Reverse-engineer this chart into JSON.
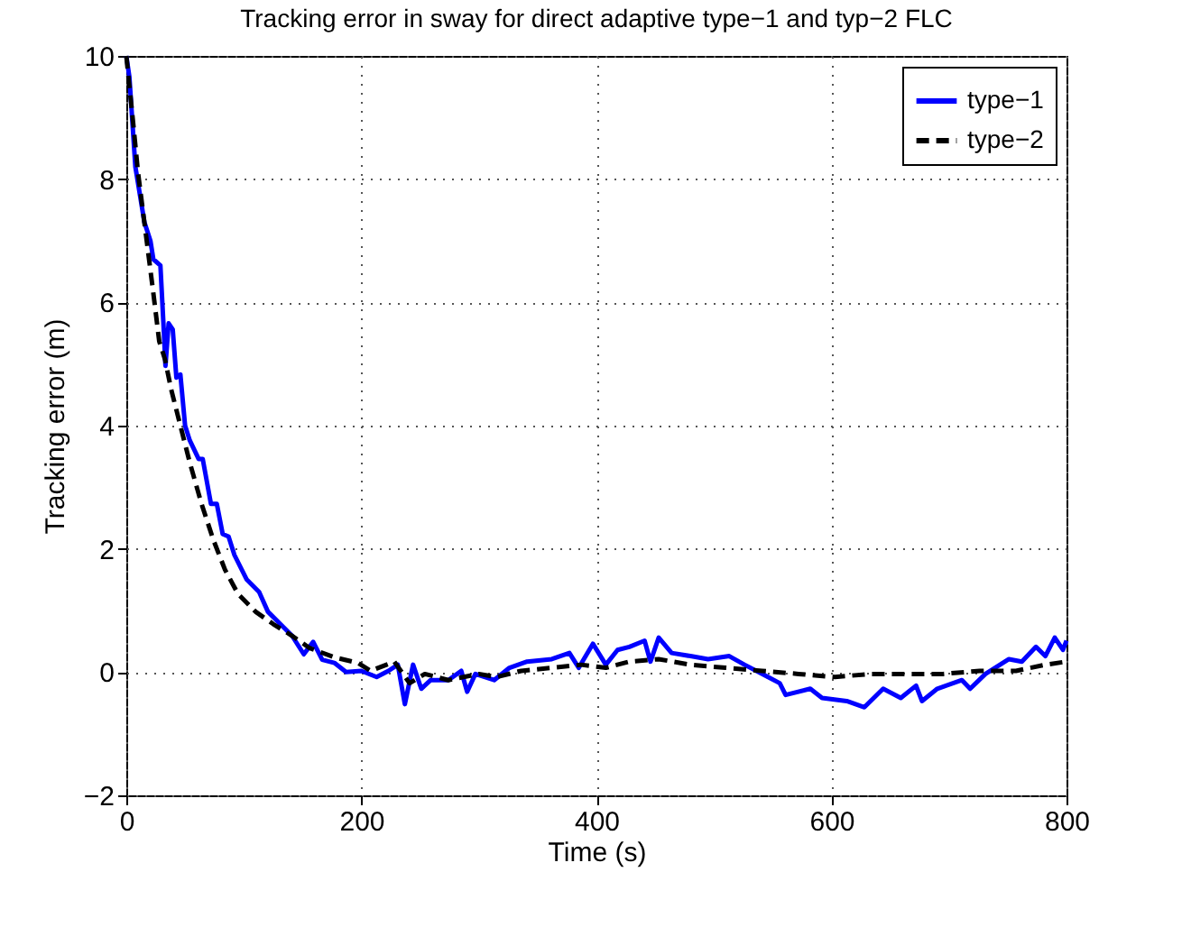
{
  "chart_data": {
    "type": "line",
    "title": "Tracking error in sway for direct adaptive type−1 and typ−2 FLC",
    "xlabel": "Time (s)",
    "ylabel": "Tracking error (m)",
    "xlim": [
      0,
      800
    ],
    "ylim": [
      -2,
      10
    ],
    "xticks": [
      0,
      200,
      400,
      600,
      800
    ],
    "yticks": [
      -2,
      0,
      2,
      4,
      6,
      8,
      10
    ],
    "grid": true,
    "legend": "top right",
    "marker": "none",
    "series": [
      {
        "name": "type−1",
        "color": "#0000ff",
        "line_style": "solid",
        "x": [
          0,
          2.6,
          7.7,
          15.4,
          20.5,
          23,
          29,
          32,
          33.3,
          36,
          39.5,
          42.6,
          46,
          50,
          54,
          61.5,
          65,
          72,
          77,
          82,
          87,
          92,
          102.5,
          113,
          120.5,
          131,
          141,
          151,
          159,
          166.7,
          177,
          187,
          200,
          213,
          223,
          231,
          237,
          244,
          251,
          259,
          274,
          285,
          290,
          297,
          313,
          326,
          341,
          362,
          377,
          385,
          397,
          408,
          418,
          428,
          441,
          446,
          453,
          464,
          480,
          495,
          513,
          526,
          546,
          556,
          561,
          582,
          592,
          613,
          628,
          644,
          659,
          672,
          677,
          690,
          711,
          718,
          731,
          751,
          762,
          774,
          782,
          790,
          797,
          800
        ],
        "values": [
          10,
          9.66,
          8.2,
          7.3,
          7.0,
          6.7,
          6.6,
          5.5,
          4.97,
          5.66,
          5.56,
          4.78,
          4.83,
          4.0,
          3.76,
          3.46,
          3.46,
          2.73,
          2.73,
          2.24,
          2.2,
          1.9,
          1.5,
          1.3,
          0.98,
          0.78,
          0.59,
          0.29,
          0.49,
          0.2,
          0.15,
          0,
          0.02,
          -0.08,
          0.02,
          0.12,
          -0.52,
          0.12,
          -0.27,
          -0.13,
          -0.13,
          0.02,
          -0.32,
          -0.03,
          -0.13,
          0.07,
          0.17,
          0.21,
          0.31,
          0.07,
          0.46,
          0.12,
          0.36,
          0.41,
          0.51,
          0.17,
          0.56,
          0.31,
          0.26,
          0.21,
          0.26,
          0.12,
          -0.08,
          -0.18,
          -0.37,
          -0.27,
          -0.42,
          -0.47,
          -0.57,
          -0.27,
          -0.42,
          -0.22,
          -0.47,
          -0.27,
          -0.13,
          -0.27,
          -0.03,
          0.21,
          0.17,
          0.41,
          0.26,
          0.56,
          0.36,
          0.51
        ]
      },
      {
        "name": "type−2",
        "color": "#000000",
        "line_style": "dashed",
        "x": [
          0,
          5,
          10,
          18,
          23,
          28,
          33,
          38,
          46,
          54,
          64,
          74,
          84,
          95,
          110,
          125,
          141,
          156,
          177,
          197,
          208,
          228,
          241,
          254,
          274,
          300,
          315,
          336,
          362,
          387,
          408,
          428,
          453,
          480,
          510,
          541,
          572,
          603,
          633,
          664,
          695,
          726,
          757,
          782,
          800
        ],
        "values": [
          10,
          9.07,
          8.1,
          6.9,
          6.15,
          5.37,
          5.07,
          4.6,
          4.0,
          3.4,
          2.73,
          2.15,
          1.66,
          1.27,
          0.98,
          0.78,
          0.59,
          0.39,
          0.24,
          0.15,
          0.02,
          0.17,
          -0.18,
          -0.03,
          -0.13,
          -0.03,
          -0.08,
          0.02,
          0.07,
          0.12,
          0.07,
          0.17,
          0.21,
          0.12,
          0.07,
          0.02,
          -0.03,
          -0.08,
          -0.03,
          -0.03,
          -0.03,
          0.02,
          0.02,
          0.12,
          0.17
        ]
      }
    ]
  }
}
